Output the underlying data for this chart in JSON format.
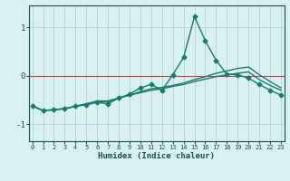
{
  "title": "",
  "xlabel": "Humidex (Indice chaleur)",
  "ylabel": "",
  "background_color": "#d8f0f0",
  "grid_color": "#b8d8d8",
  "line_color": "#1a7a6e",
  "hline_color": "#cc4444",
  "x_ticks": [
    0,
    1,
    2,
    3,
    4,
    5,
    6,
    7,
    8,
    9,
    10,
    11,
    12,
    13,
    14,
    15,
    16,
    17,
    18,
    19,
    20,
    21,
    22,
    23
  ],
  "y_ticks": [
    -1,
    0,
    1
  ],
  "xlim": [
    -0.3,
    23.3
  ],
  "ylim": [
    -1.35,
    1.45
  ],
  "series": [
    {
      "x": [
        0,
        1,
        2,
        3,
        4,
        5,
        6,
        7,
        8,
        9,
        10,
        11,
        12,
        13,
        14,
        15,
        16,
        17,
        18,
        19,
        20,
        21,
        22,
        23
      ],
      "y": [
        -0.62,
        -0.72,
        -0.7,
        -0.68,
        -0.63,
        -0.6,
        -0.55,
        -0.58,
        -0.46,
        -0.38,
        -0.25,
        -0.18,
        -0.3,
        0.02,
        0.38,
        1.22,
        0.72,
        0.32,
        0.03,
        0.02,
        -0.05,
        -0.18,
        -0.3,
        -0.4
      ],
      "marker": "D",
      "markersize": 2.5,
      "linewidth": 1.0
    },
    {
      "x": [
        0,
        1,
        2,
        3,
        4,
        5,
        6,
        7,
        8,
        9,
        10,
        11,
        12,
        13,
        14,
        15,
        16,
        17,
        18,
        19,
        20,
        21,
        22,
        23
      ],
      "y": [
        -0.62,
        -0.72,
        -0.7,
        -0.68,
        -0.63,
        -0.58,
        -0.52,
        -0.52,
        -0.46,
        -0.4,
        -0.35,
        -0.3,
        -0.27,
        -0.22,
        -0.18,
        -0.12,
        -0.07,
        -0.02,
        0.02,
        0.05,
        0.08,
        -0.08,
        -0.2,
        -0.3
      ],
      "marker": null,
      "markersize": 0,
      "linewidth": 1.0
    },
    {
      "x": [
        0,
        1,
        2,
        3,
        4,
        5,
        6,
        7,
        8,
        9,
        10,
        11,
        12,
        13,
        14,
        15,
        16,
        17,
        18,
        19,
        20,
        21,
        22,
        23
      ],
      "y": [
        -0.62,
        -0.72,
        -0.7,
        -0.68,
        -0.63,
        -0.58,
        -0.53,
        -0.54,
        -0.46,
        -0.4,
        -0.33,
        -0.27,
        -0.24,
        -0.2,
        -0.15,
        -0.08,
        -0.02,
        0.05,
        0.1,
        0.15,
        0.18,
        0.02,
        -0.12,
        -0.25
      ],
      "marker": null,
      "markersize": 0,
      "linewidth": 1.0
    }
  ]
}
